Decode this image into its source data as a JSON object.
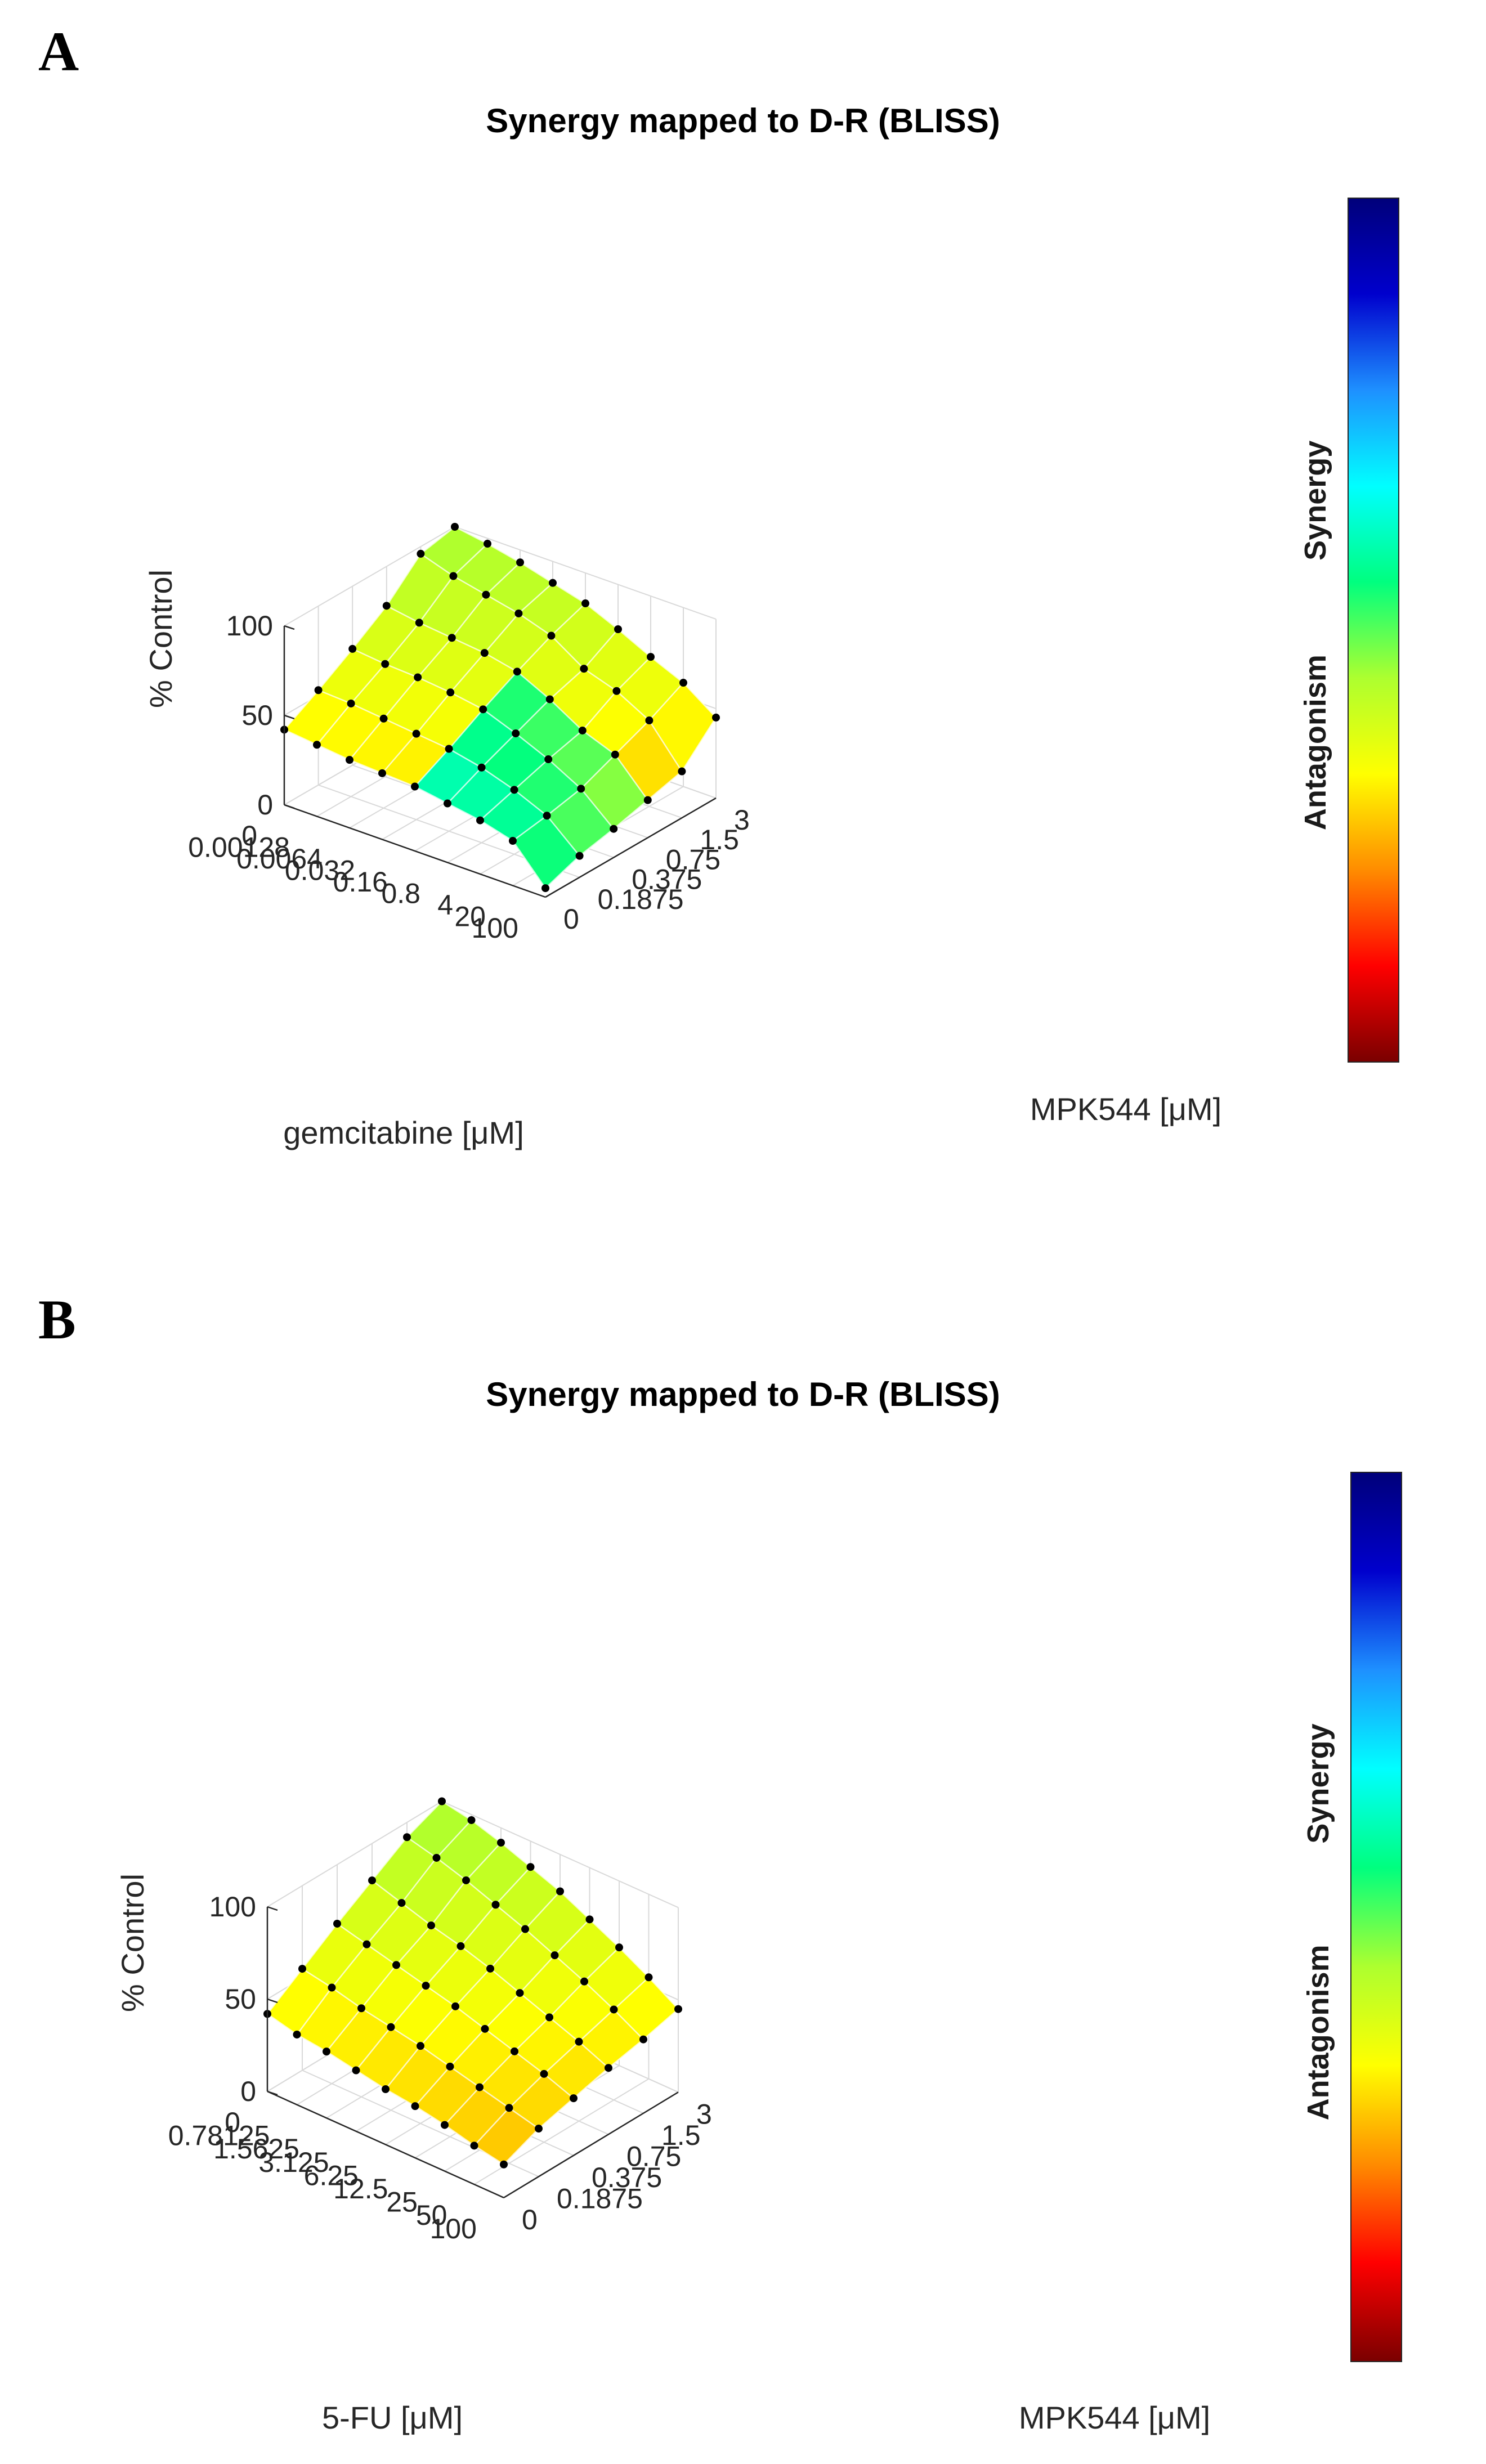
{
  "chart_data": [
    {
      "panel_label": "A",
      "type": "surface3d",
      "title": "Synergy mapped to D-R (BLISS)",
      "zlabel": "% Control",
      "z_ticks": [
        "0",
        "50",
        "100"
      ],
      "zlim": [
        0,
        100
      ],
      "x_axis": {
        "label": "gemcitabine [μM]",
        "ticks": [
          "0",
          "0.00128",
          "0.0064",
          "0.032",
          "0.16",
          "0.8",
          "4",
          "20",
          "100"
        ]
      },
      "y_axis": {
        "label": "MPK544 [μM]",
        "ticks": [
          "0",
          "0.1875",
          "0.375",
          "0.75",
          "1.5",
          "3"
        ]
      },
      "colorbar": {
        "low_label": "Antagonism",
        "high_label": "Synergy",
        "colors": [
          "#7a0000",
          "#ff0000",
          "#ff8c00",
          "#ffff00",
          "#adff2f",
          "#00ff7f",
          "#00ffff",
          "#1e90ff",
          "#0000cd",
          "#00007a"
        ]
      },
      "z_rows": [
        [
          42,
          40,
          38,
          37,
          36,
          33,
          30,
          25,
          5
        ],
        [
          53,
          52,
          50,
          48,
          46,
          42,
          36,
          28,
          12
        ],
        [
          65,
          63,
          62,
          60,
          57,
          50,
          42,
          32,
          16
        ],
        [
          78,
          75,
          73,
          71,
          67,
          58,
          47,
          40,
          21
        ],
        [
          96,
          90,
          86,
          82,
          76,
          64,
          58,
          48,
          26
        ],
        [
          100,
          97,
          93,
          88,
          83,
          75,
          66,
          58,
          45
        ]
      ]
    },
    {
      "panel_label": "B",
      "type": "surface3d",
      "title": "Synergy mapped to D-R (BLISS)",
      "zlabel": "% Control",
      "z_ticks": [
        "0",
        "50",
        "100"
      ],
      "zlim": [
        0,
        100
      ],
      "x_axis": {
        "label": "5-FU [μM]",
        "ticks": [
          "0",
          "0.78125",
          "1.5625",
          "3.125",
          "6.25",
          "12.5",
          "25",
          "50",
          "100"
        ]
      },
      "y_axis": {
        "label": "MPK544 [μM]",
        "ticks": [
          "0",
          "0.1875",
          "0.375",
          "0.75",
          "1.5",
          "3"
        ]
      },
      "colorbar": {
        "low_label": "Antagonism",
        "high_label": "Synergy",
        "colors": [
          "#7a0000",
          "#ff0000",
          "#ff8c00",
          "#ffff00",
          "#adff2f",
          "#00ff7f",
          "#00ffff",
          "#1e90ff",
          "#0000cd",
          "#00007a"
        ]
      },
      "z_rows": [
        [
          42,
          38,
          36,
          33,
          30,
          28,
          25,
          21,
          18
        ],
        [
          55,
          52,
          48,
          45,
          42,
          38,
          34,
          30,
          26
        ],
        [
          68,
          64,
          60,
          56,
          52,
          47,
          42,
          37,
          31
        ],
        [
          80,
          75,
          70,
          66,
          61,
          55,
          49,
          43,
          36
        ],
        [
          92,
          88,
          83,
          77,
          71,
          64,
          57,
          49,
          40
        ],
        [
          100,
          97,
          92,
          86,
          80,
          72,
          64,
          55,
          45
        ]
      ]
    }
  ]
}
